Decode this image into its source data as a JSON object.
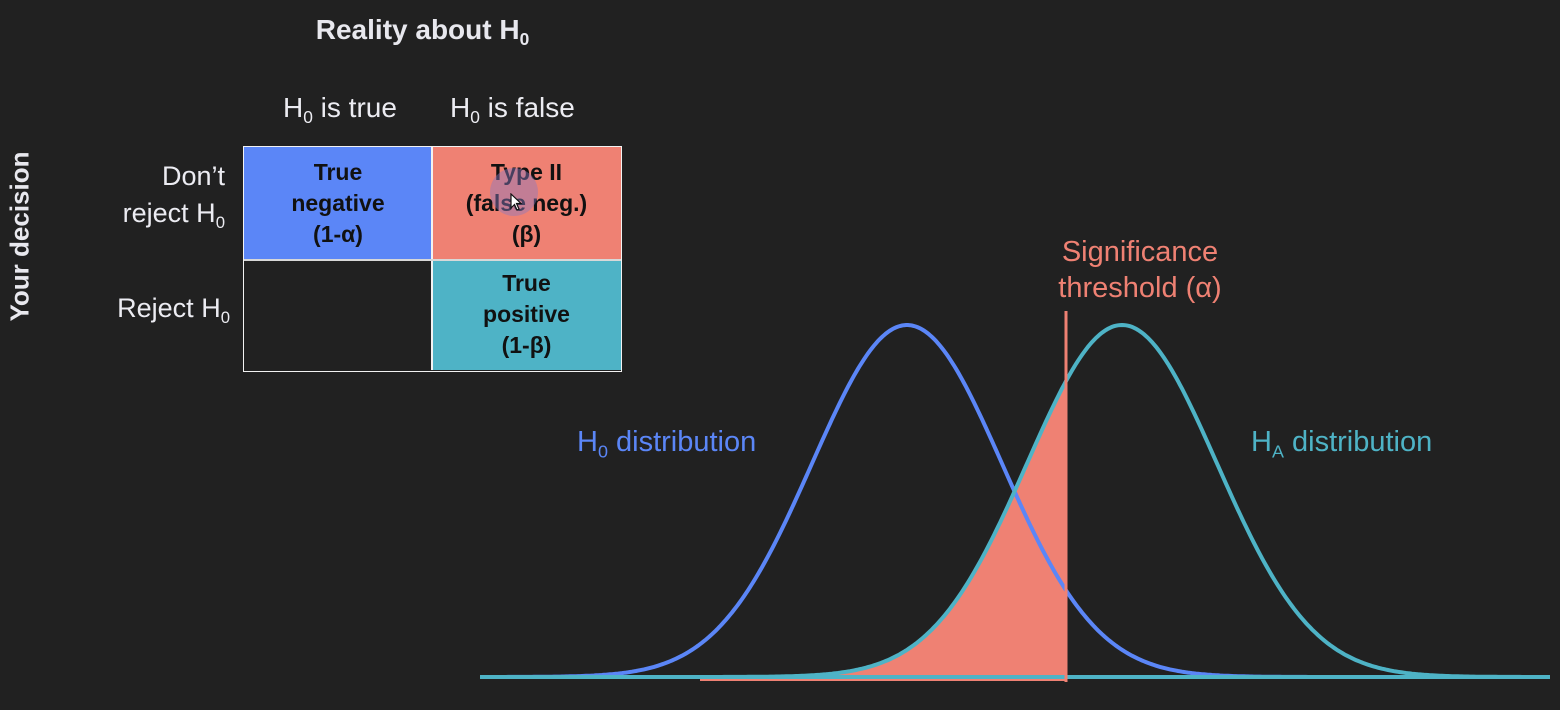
{
  "header": {
    "reality_title": "Reality about H",
    "reality_title_sub": "0"
  },
  "columns": [
    {
      "prefix": "H",
      "sub": "0",
      "suffix": " is true"
    },
    {
      "prefix": "H",
      "sub": "0",
      "suffix": " is false"
    }
  ],
  "rows": {
    "axis_label": "Your decision",
    "dont_reject_line1": "Don’t",
    "dont_reject_line2": "reject H",
    "dont_reject_sub": "0",
    "reject": "Reject H",
    "reject_sub": "0"
  },
  "matrix": {
    "true_negative": [
      "True",
      "negative",
      "(1-α)"
    ],
    "type_two": [
      "Type II",
      "(false neg.)",
      "(β)"
    ],
    "true_positive": [
      "True",
      "positive",
      "(1-β)"
    ]
  },
  "plot": {
    "significance_line1": "Significance",
    "significance_line2": "threshold (α)",
    "h0_label": "H",
    "h0_label_sub": "0",
    "h0_label_suffix": " distribution",
    "ha_label": "H",
    "ha_label_sub": "A",
    "ha_label_suffix": " distribution"
  },
  "colors": {
    "background": "#212121",
    "h0_blue": "#5b86f7",
    "ha_teal": "#4eb3c6",
    "beta_salmon": "#ef8173",
    "text": "#ececf2"
  },
  "icons": {
    "cursor": "mouse-pointer-icon"
  }
}
